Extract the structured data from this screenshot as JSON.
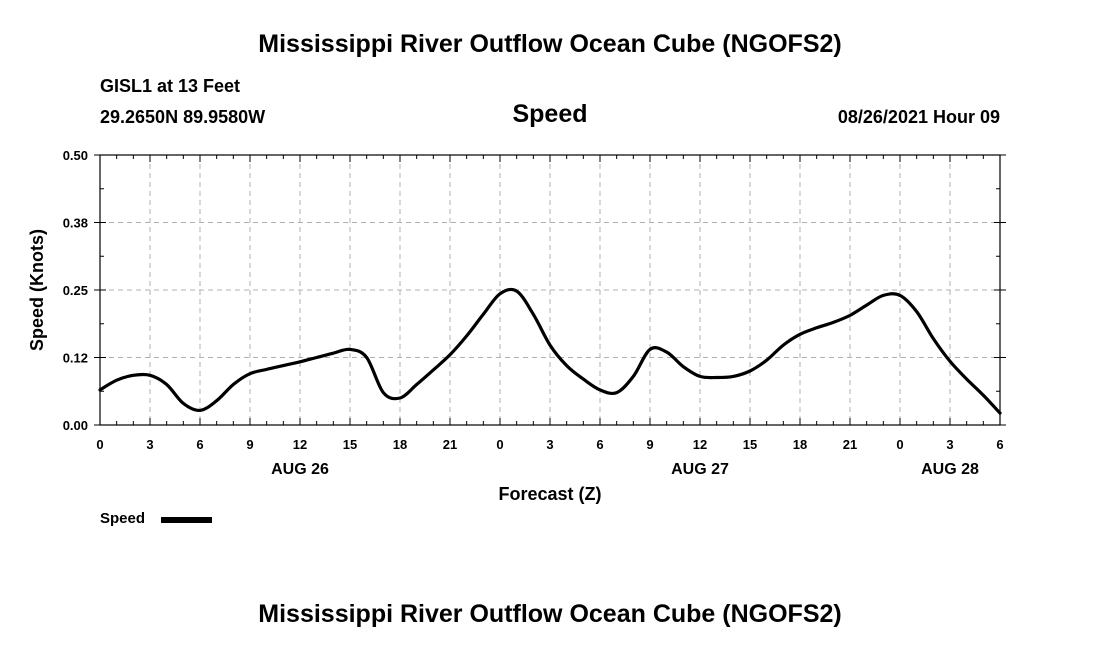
{
  "header": {
    "title": "Mississippi River Outflow Ocean Cube (NGOFS2)",
    "station": "GISL1 at 13 Feet",
    "coords": "29.2650N  89.9580W",
    "variable": "Speed",
    "datetime": "08/26/2021 Hour 09"
  },
  "footer": {
    "title": "Mississippi River Outflow Ocean Cube (NGOFS2)"
  },
  "legend": {
    "label": "Speed",
    "color": "#000000"
  },
  "chart_data": {
    "type": "line",
    "title": "Speed",
    "xlabel": "Forecast (Z)",
    "ylabel": "Speed (Knots)",
    "xlim": [
      0,
      54
    ],
    "ylim": [
      0,
      0.5
    ],
    "yticks": [
      "0.00",
      "0.12",
      "0.25",
      "0.38",
      "0.50"
    ],
    "ytick_values": [
      0,
      0.125,
      0.25,
      0.375,
      0.5
    ],
    "xticks": [
      "0",
      "3",
      "6",
      "9",
      "12",
      "15",
      "18",
      "21",
      "0",
      "3",
      "6",
      "9",
      "12",
      "15",
      "18",
      "21",
      "0",
      "3",
      "6"
    ],
    "date_labels": [
      {
        "label": "AUG 26",
        "hour": 12
      },
      {
        "label": "AUG 27",
        "hour": 36
      },
      {
        "label": "AUG 28",
        "hour": 51
      }
    ],
    "grid": true,
    "series": [
      {
        "name": "Speed",
        "x": [
          0,
          1,
          2,
          3,
          4,
          5,
          6,
          7,
          8,
          9,
          10,
          11,
          12,
          13,
          14,
          15,
          16,
          17,
          18,
          19,
          20,
          21,
          22,
          23,
          24,
          25,
          26,
          27,
          28,
          29,
          30,
          31,
          32,
          33,
          34,
          35,
          36,
          37,
          38,
          39,
          40,
          41,
          42,
          43,
          44,
          45,
          46,
          47,
          48,
          49,
          50,
          51,
          52,
          53,
          54
        ],
        "values": [
          0.065,
          0.083,
          0.092,
          0.092,
          0.075,
          0.04,
          0.027,
          0.045,
          0.075,
          0.095,
          0.103,
          0.11,
          0.117,
          0.125,
          0.133,
          0.14,
          0.125,
          0.06,
          0.05,
          0.075,
          0.102,
          0.13,
          0.165,
          0.205,
          0.243,
          0.248,
          0.205,
          0.148,
          0.11,
          0.085,
          0.065,
          0.06,
          0.09,
          0.14,
          0.135,
          0.108,
          0.09,
          0.088,
          0.09,
          0.1,
          0.12,
          0.148,
          0.168,
          0.18,
          0.19,
          0.203,
          0.222,
          0.24,
          0.24,
          0.21,
          0.16,
          0.118,
          0.085,
          0.055,
          0.022
        ]
      }
    ]
  }
}
